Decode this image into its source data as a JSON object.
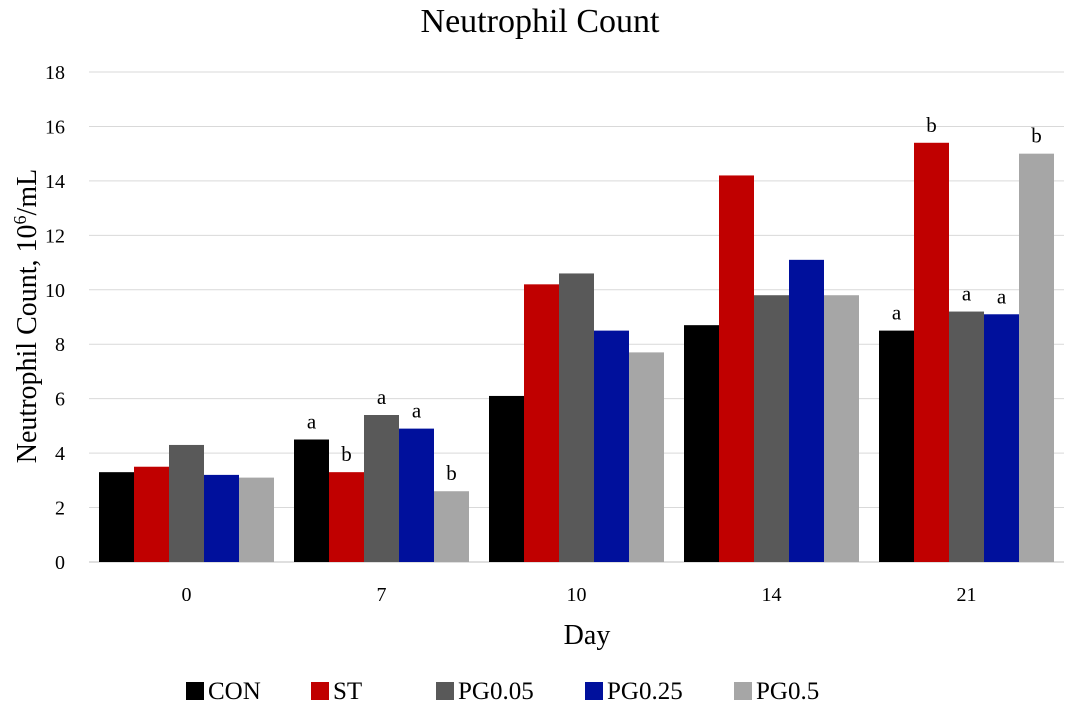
{
  "chart_data": {
    "type": "bar",
    "title": "Neutrophil Count",
    "xlabel": "Day",
    "ylabel": "Neutrophil Count, 10",
    "ylabel_superscript": "6",
    "ylabel_suffix": "/mL",
    "ylim": [
      0,
      18
    ],
    "yticks": [
      0,
      2,
      4,
      6,
      8,
      10,
      12,
      14,
      16,
      18
    ],
    "grid": true,
    "legend_position": "bottom",
    "categories": [
      "0",
      "7",
      "10",
      "14",
      "21"
    ],
    "series": [
      {
        "name": "CON",
        "color": "#000000",
        "values": [
          3.3,
          4.5,
          6.1,
          8.7,
          8.5
        ],
        "annotations": [
          "",
          "a",
          "",
          "",
          "a"
        ]
      },
      {
        "name": "ST",
        "color": "#c00000",
        "values": [
          3.5,
          3.3,
          10.2,
          14.2,
          15.4
        ],
        "annotations": [
          "",
          "b",
          "",
          "",
          "b"
        ]
      },
      {
        "name": "PG0.05",
        "color": "#595959",
        "values": [
          4.3,
          5.4,
          10.6,
          9.8,
          9.2
        ],
        "annotations": [
          "",
          "a",
          "",
          "",
          "a"
        ]
      },
      {
        "name": "PG0.25",
        "color": "#00109c",
        "values": [
          3.2,
          4.9,
          8.5,
          11.1,
          9.1
        ],
        "annotations": [
          "",
          "a",
          "",
          "",
          "a"
        ]
      },
      {
        "name": "PG0.5",
        "color": "#a6a6a6",
        "values": [
          3.1,
          2.6,
          7.7,
          9.8,
          15.0
        ],
        "annotations": [
          "",
          "b",
          "",
          "",
          "b"
        ]
      }
    ]
  }
}
